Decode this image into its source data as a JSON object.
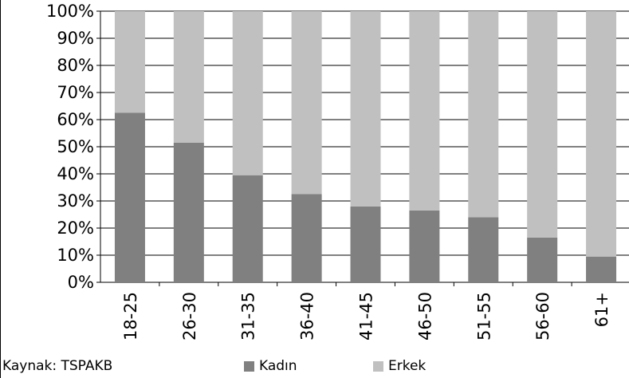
{
  "chart_data": {
    "type": "bar",
    "stacked": true,
    "categories": [
      "18-25",
      "26-30",
      "31-35",
      "36-40",
      "41-45",
      "46-50",
      "51-55",
      "56-60",
      "61+"
    ],
    "series": [
      {
        "name": "Kadın",
        "color": "#808080",
        "values": [
          62.5,
          51.5,
          39.5,
          32.5,
          28,
          26.5,
          24,
          16.5,
          9.5
        ]
      },
      {
        "name": "Erkek",
        "color": "#c0c0c0",
        "values": [
          37.5,
          48.5,
          60.5,
          67.5,
          72,
          73.5,
          76,
          83.5,
          90.5
        ]
      }
    ],
    "yticks": [
      "0%",
      "10%",
      "20%",
      "30%",
      "40%",
      "50%",
      "60%",
      "70%",
      "80%",
      "90%",
      "100%"
    ],
    "ylim": [
      0,
      100
    ],
    "grid": true,
    "legend_position": "bottom"
  },
  "source": "Kaynak: TSPAKB"
}
